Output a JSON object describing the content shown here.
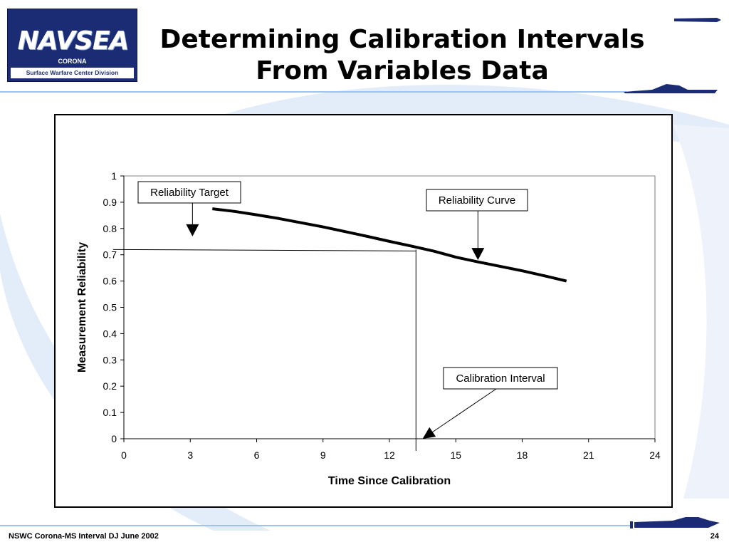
{
  "slide": {
    "title_line1": "Determining Calibration Intervals",
    "title_line2": "From Variables Data",
    "logo": {
      "word": "NAVSEA",
      "sub": "CORONA",
      "division": "Surface Warfare Center Division"
    },
    "footer_left": "NSWC Corona-MS Interval DJ June 2002",
    "page_number": "24",
    "colors": {
      "navy": "#1c2c74",
      "accent": "#9fc2ee",
      "swoosh": "#dde8f7"
    }
  },
  "chart_data": {
    "type": "line",
    "xlabel": "Time Since Calibration",
    "ylabel": "Measurement Reliability",
    "xlim": [
      0,
      24
    ],
    "ylim": [
      0,
      1
    ],
    "x_ticks": [
      0,
      3,
      6,
      9,
      12,
      15,
      18,
      21,
      24
    ],
    "y_ticks": [
      0,
      0.1,
      0.2,
      0.3,
      0.4,
      0.5,
      0.6,
      0.7,
      0.8,
      0.9,
      1
    ],
    "x_tick_labels": [
      "0",
      "3",
      "6",
      "9",
      "12",
      "15",
      "18",
      "21",
      "24"
    ],
    "y_tick_labels": [
      "0",
      "0.1",
      "0.2",
      "0.3",
      "0.4",
      "0.5",
      "0.6",
      "0.7",
      "0.8",
      "0.9",
      "1"
    ],
    "grid": false,
    "legend": "none",
    "series": [
      {
        "x": [
          4,
          5,
          6,
          7,
          8,
          9,
          10,
          11,
          12,
          13,
          14,
          15,
          16,
          17,
          18,
          19,
          20
        ],
        "y": [
          0.875,
          0.865,
          0.852,
          0.838,
          0.822,
          0.806,
          0.788,
          0.77,
          0.751,
          0.733,
          0.714,
          0.691,
          0.673,
          0.656,
          0.639,
          0.62,
          0.6
        ]
      }
    ],
    "reliability_target": 0.72,
    "calibration_interval": 13.2,
    "annotations": [
      {
        "text": "Reliability Target",
        "arrow_x": 3.1,
        "arrow_y": 0.77
      },
      {
        "text": "Reliability Curve",
        "arrow_x": 16,
        "arrow_y": 0.68
      },
      {
        "text": "Calibration Interval",
        "arrow_x": 13.5,
        "arrow_y": 0.0
      }
    ]
  }
}
